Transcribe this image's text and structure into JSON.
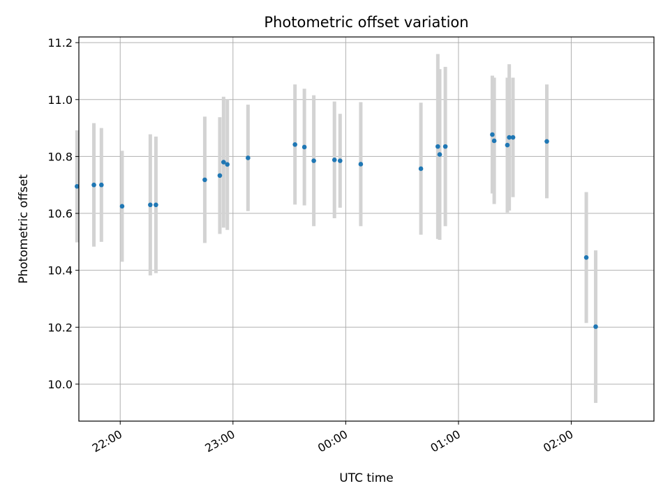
{
  "chart_data": {
    "type": "scatter",
    "title": "Photometric offset variation",
    "xlabel": "UTC time",
    "ylabel": "Photometric offset",
    "x_axis": {
      "type": "time",
      "range": [
        "21:38",
        "02:44"
      ]
    },
    "ylim": [
      9.87,
      11.22
    ],
    "y_ticks": [
      10.0,
      10.2,
      10.4,
      10.6,
      10.8,
      11.0,
      11.2
    ],
    "x_ticks": [
      "22:00",
      "23:00",
      "00:00",
      "01:00",
      "02:00"
    ],
    "grid": true,
    "colors": {
      "point": "#1f77b4",
      "errorbar": "#d3d3d3",
      "grid": "#b0b0b0"
    },
    "points": [
      {
        "x": "21:37",
        "y": 10.695,
        "err": 0.197
      },
      {
        "x": "21:46",
        "y": 10.7,
        "err": 0.217
      },
      {
        "x": "21:50",
        "y": 10.7,
        "err": 0.2
      },
      {
        "x": "22:01",
        "y": 10.625,
        "err": 0.195
      },
      {
        "x": "22:16",
        "y": 10.63,
        "err": 0.248
      },
      {
        "x": "22:19",
        "y": 10.63,
        "err": 0.24
      },
      {
        "x": "22:45",
        "y": 10.718,
        "err": 0.222
      },
      {
        "x": "22:53",
        "y": 10.733,
        "err": 0.205
      },
      {
        "x": "22:55",
        "y": 10.78,
        "err": 0.23
      },
      {
        "x": "22:57",
        "y": 10.772,
        "err": 0.23
      },
      {
        "x": "23:08",
        "y": 10.795,
        "err": 0.187
      },
      {
        "x": "23:33",
        "y": 10.842,
        "err": 0.211
      },
      {
        "x": "23:38",
        "y": 10.833,
        "err": 0.205
      },
      {
        "x": "23:43",
        "y": 10.785,
        "err": 0.23
      },
      {
        "x": "23:54",
        "y": 10.788,
        "err": 0.205
      },
      {
        "x": "23:57",
        "y": 10.785,
        "err": 0.165
      },
      {
        "x": "00:08",
        "y": 10.773,
        "err": 0.218
      },
      {
        "x": "00:40",
        "y": 10.757,
        "err": 0.232
      },
      {
        "x": "00:49",
        "y": 10.835,
        "err": 0.325
      },
      {
        "x": "00:50",
        "y": 10.807,
        "err": 0.3
      },
      {
        "x": "00:53",
        "y": 10.835,
        "err": 0.28
      },
      {
        "x": "01:18",
        "y": 10.877,
        "err": 0.207
      },
      {
        "x": "01:19",
        "y": 10.855,
        "err": 0.222
      },
      {
        "x": "01:26",
        "y": 10.84,
        "err": 0.237
      },
      {
        "x": "01:27",
        "y": 10.867,
        "err": 0.257
      },
      {
        "x": "01:29",
        "y": 10.867,
        "err": 0.21
      },
      {
        "x": "01:47",
        "y": 10.853,
        "err": 0.2
      },
      {
        "x": "02:08",
        "y": 10.445,
        "err": 0.23
      },
      {
        "x": "02:13",
        "y": 10.202,
        "err": 0.268
      }
    ]
  }
}
